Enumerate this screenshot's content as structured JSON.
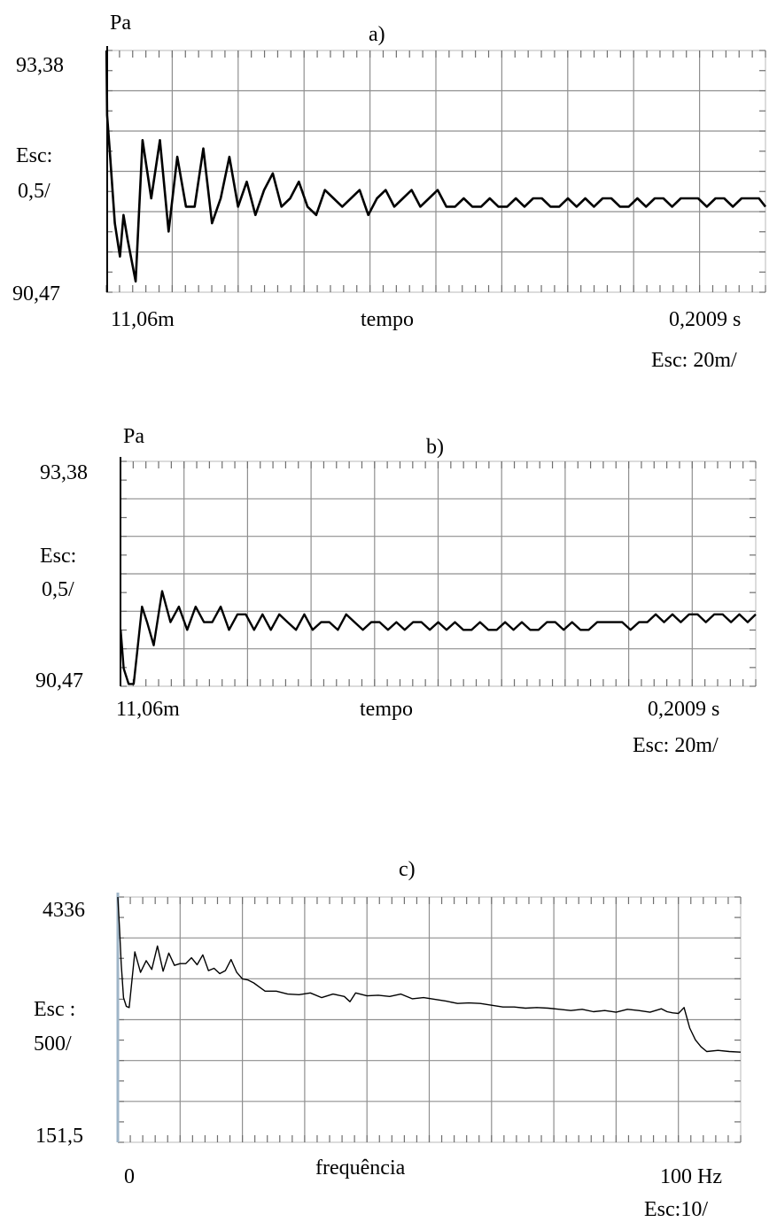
{
  "chart_data": [
    {
      "panel": "a)",
      "type": "line",
      "title": "a)",
      "ylabel": "Pa",
      "xlabel": "tempo",
      "y_top_label": "93,38",
      "y_bottom_label": "90,47",
      "y_scale_label": [
        "Esc:",
        "0,5/"
      ],
      "x_start_label": "11,06m",
      "x_end_label": "0,2009 s",
      "x_scale_label": "Esc: 20m/",
      "xlim": [
        0.01106,
        0.2009
      ],
      "ylim": [
        90.47,
        93.38
      ],
      "grid": true,
      "x": [
        0.0111,
        0.0113,
        0.012,
        0.0135,
        0.015,
        0.016,
        0.0172,
        0.0195,
        0.0215,
        0.024,
        0.0265,
        0.029,
        0.0315,
        0.034,
        0.0365,
        0.039,
        0.0415,
        0.044,
        0.0465,
        0.049,
        0.0515,
        0.054,
        0.0565,
        0.059,
        0.0615,
        0.064,
        0.0665,
        0.069,
        0.0715,
        0.074,
        0.0765,
        0.079,
        0.0815,
        0.084,
        0.0865,
        0.089,
        0.0915,
        0.094,
        0.0965,
        0.099,
        0.1015,
        0.104,
        0.1065,
        0.109,
        0.1115,
        0.114,
        0.1165,
        0.119,
        0.1215,
        0.124,
        0.1265,
        0.129,
        0.1315,
        0.134,
        0.1365,
        0.139,
        0.1415,
        0.144,
        0.1465,
        0.149,
        0.1515,
        0.154,
        0.1565,
        0.159,
        0.1615,
        0.164,
        0.1665,
        0.169,
        0.1715,
        0.174,
        0.1765,
        0.179,
        0.1815,
        0.184,
        0.1865,
        0.189,
        0.1915,
        0.194,
        0.1965,
        0.199,
        0.2009
      ],
      "y": [
        93.38,
        92.6,
        92.2,
        91.3,
        90.9,
        91.4,
        91.1,
        90.6,
        92.3,
        91.6,
        92.3,
        91.2,
        92.1,
        91.5,
        91.5,
        92.2,
        91.3,
        91.6,
        92.1,
        91.5,
        91.8,
        91.4,
        91.7,
        91.9,
        91.5,
        91.6,
        91.8,
        91.5,
        91.4,
        91.7,
        91.6,
        91.5,
        91.6,
        91.7,
        91.4,
        91.6,
        91.7,
        91.5,
        91.6,
        91.7,
        91.5,
        91.6,
        91.7,
        91.5,
        91.5,
        91.6,
        91.5,
        91.5,
        91.6,
        91.5,
        91.5,
        91.6,
        91.5,
        91.6,
        91.6,
        91.5,
        91.5,
        91.6,
        91.5,
        91.6,
        91.5,
        91.6,
        91.6,
        91.5,
        91.5,
        91.6,
        91.5,
        91.6,
        91.6,
        91.5,
        91.6,
        91.6,
        91.6,
        91.5,
        91.6,
        91.6,
        91.5,
        91.6,
        91.6,
        91.6,
        91.5
      ]
    },
    {
      "panel": "b)",
      "type": "line",
      "title": "b)",
      "ylabel": "Pa",
      "xlabel": "tempo",
      "y_top_label": "93,38",
      "y_bottom_label": "90,47",
      "y_scale_label": [
        "Esc:",
        "0,5/"
      ],
      "x_start_label": "11,06m",
      "x_end_label": "0,2009 s",
      "x_scale_label": "Esc: 20m/",
      "xlim": [
        0.01106,
        0.2009
      ],
      "ylim": [
        90.47,
        93.38
      ],
      "grid": true,
      "x": [
        0.0111,
        0.012,
        0.0135,
        0.015,
        0.016,
        0.0175,
        0.019,
        0.021,
        0.0235,
        0.026,
        0.0285,
        0.031,
        0.0335,
        0.036,
        0.0385,
        0.041,
        0.0435,
        0.046,
        0.0485,
        0.051,
        0.0535,
        0.056,
        0.0585,
        0.061,
        0.0635,
        0.066,
        0.0685,
        0.071,
        0.0735,
        0.076,
        0.0785,
        0.081,
        0.0835,
        0.086,
        0.0885,
        0.091,
        0.0935,
        0.096,
        0.0985,
        0.101,
        0.1035,
        0.106,
        0.1085,
        0.111,
        0.1135,
        0.116,
        0.1185,
        0.121,
        0.1235,
        0.126,
        0.1285,
        0.131,
        0.1335,
        0.136,
        0.1385,
        0.141,
        0.1435,
        0.146,
        0.1485,
        0.151,
        0.1535,
        0.156,
        0.1585,
        0.161,
        0.1635,
        0.166,
        0.1685,
        0.171,
        0.1735,
        0.176,
        0.1785,
        0.181,
        0.1835,
        0.186,
        0.1885,
        0.191,
        0.1935,
        0.196,
        0.1985,
        0.2009
      ],
      "y": [
        91.2,
        90.7,
        90.5,
        90.5,
        90.9,
        91.5,
        91.3,
        91.0,
        91.7,
        91.3,
        91.5,
        91.2,
        91.5,
        91.3,
        91.3,
        91.5,
        91.2,
        91.4,
        91.4,
        91.2,
        91.4,
        91.2,
        91.4,
        91.3,
        91.2,
        91.4,
        91.2,
        91.3,
        91.3,
        91.2,
        91.4,
        91.3,
        91.2,
        91.3,
        91.3,
        91.2,
        91.3,
        91.2,
        91.3,
        91.3,
        91.2,
        91.3,
        91.2,
        91.3,
        91.2,
        91.2,
        91.3,
        91.2,
        91.2,
        91.3,
        91.2,
        91.3,
        91.2,
        91.2,
        91.3,
        91.3,
        91.2,
        91.3,
        91.2,
        91.2,
        91.3,
        91.3,
        91.3,
        91.3,
        91.2,
        91.3,
        91.3,
        91.4,
        91.3,
        91.4,
        91.3,
        91.4,
        91.4,
        91.3,
        91.4,
        91.4,
        91.3,
        91.4,
        91.3,
        91.4
      ]
    },
    {
      "panel": "c)",
      "type": "line",
      "title": "c)",
      "ylabel": "",
      "xlabel": "frequência",
      "y_top_label": "4336",
      "y_bottom_label": "151,5",
      "y_scale_label": [
        "Esc :",
        "500/"
      ],
      "x_start_label": "0",
      "x_end_label": "100  Hz",
      "x_scale_label": "Esc:10/",
      "xlim": [
        0,
        110
      ],
      "ylim": [
        151.5,
        4336
      ],
      "grid": true,
      "x": [
        0,
        0.3,
        0.6,
        1,
        1.5,
        2,
        3,
        4,
        5,
        6,
        7,
        8,
        9,
        10,
        11,
        12,
        13,
        14,
        15,
        16,
        17,
        18,
        19,
        20,
        21,
        22,
        23,
        24,
        25,
        26,
        28,
        30,
        32,
        34,
        36,
        38,
        40,
        41,
        42,
        44,
        46,
        48,
        50,
        52,
        54,
        56,
        58,
        60,
        62,
        64,
        66,
        68,
        70,
        72,
        74,
        76,
        78,
        80,
        82,
        84,
        86,
        88,
        90,
        92,
        94,
        96,
        97,
        98,
        99,
        100,
        101,
        102,
        103,
        104,
        106,
        108,
        110
      ],
      "y": [
        4336,
        3800,
        3200,
        2620,
        2470,
        2450,
        3400,
        3050,
        3250,
        3100,
        3500,
        3070,
        3380,
        3170,
        3200,
        3200,
        3300,
        3180,
        3350,
        3080,
        3120,
        3030,
        3080,
        3270,
        3050,
        2940,
        2920,
        2870,
        2800,
        2730,
        2730,
        2680,
        2670,
        2700,
        2620,
        2680,
        2640,
        2550,
        2700,
        2650,
        2660,
        2640,
        2680,
        2600,
        2620,
        2590,
        2560,
        2520,
        2530,
        2520,
        2490,
        2460,
        2460,
        2440,
        2450,
        2440,
        2420,
        2400,
        2420,
        2380,
        2400,
        2370,
        2420,
        2400,
        2370,
        2430,
        2380,
        2360,
        2350,
        2450,
        2100,
        1900,
        1780,
        1700,
        1720,
        1700,
        1690
      ]
    }
  ]
}
